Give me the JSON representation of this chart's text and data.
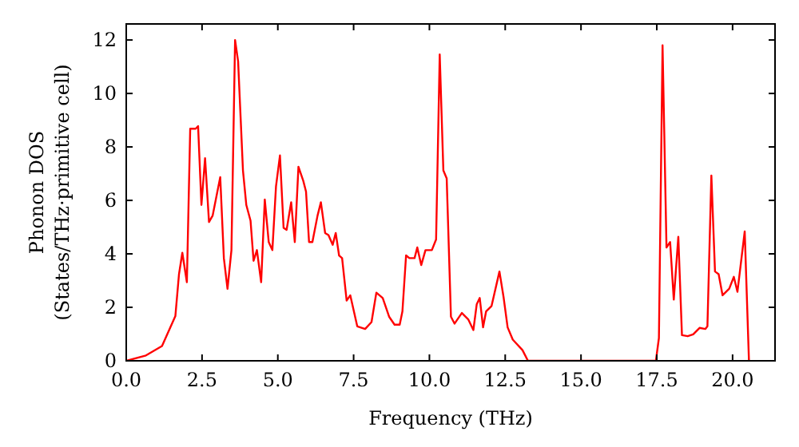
{
  "chart_data": {
    "type": "line",
    "xlabel": "Frequency (THz)",
    "ylabel": "Phonon DOS\n(States/THz·primitive cell)",
    "xlim": [
      0,
      21.4
    ],
    "ylim": [
      0,
      12.6
    ],
    "xticks": [
      {
        "value": 0,
        "label": "0.0"
      },
      {
        "value": 2.5,
        "label": "2.5"
      },
      {
        "value": 5,
        "label": "5.0"
      },
      {
        "value": 7.5,
        "label": "7.5"
      },
      {
        "value": 10,
        "label": "10.0"
      },
      {
        "value": 12.5,
        "label": "12.5"
      },
      {
        "value": 15,
        "label": "15.0"
      },
      {
        "value": 17.5,
        "label": "17.5"
      },
      {
        "value": 20,
        "label": "20.0"
      }
    ],
    "yticks": [
      0,
      2,
      4,
      6,
      8,
      10,
      12
    ],
    "grid": false,
    "marker": "none",
    "line_style": "solid",
    "series": [
      {
        "color": "#ff0000",
        "x": [
          0,
          0.65,
          1.18,
          1.62,
          1.74,
          1.85,
          2.0,
          2.11,
          2.29,
          2.37,
          2.48,
          2.6,
          2.73,
          2.85,
          3.1,
          3.22,
          3.34,
          3.47,
          3.59,
          3.69,
          3.85,
          3.96,
          4.1,
          4.2,
          4.31,
          4.45,
          4.57,
          4.7,
          4.82,
          4.94,
          5.07,
          5.19,
          5.29,
          5.44,
          5.56,
          5.68,
          5.84,
          5.93,
          6.03,
          6.14,
          6.31,
          6.42,
          6.56,
          6.67,
          6.81,
          6.91,
          7.02,
          7.12,
          7.27,
          7.39,
          7.62,
          7.88,
          8.09,
          8.25,
          8.46,
          8.67,
          8.85,
          9.02,
          9.11,
          9.23,
          9.34,
          9.51,
          9.6,
          9.73,
          9.87,
          10.08,
          10.22,
          10.34,
          10.46,
          10.57,
          10.71,
          10.83,
          11.07,
          11.28,
          11.45,
          11.56,
          11.66,
          11.77,
          11.87,
          12.05,
          12.31,
          12.45,
          12.58,
          12.75,
          13.07,
          13.25,
          17.47,
          17.57,
          17.69,
          17.82,
          17.94,
          18.06,
          18.21,
          18.33,
          18.52,
          18.7,
          18.91,
          19.1,
          19.17,
          19.3,
          19.42,
          19.54,
          19.67,
          19.89,
          20.04,
          20.16,
          20.4,
          20.54
        ],
        "values": [
          0,
          0.2,
          0.55,
          1.67,
          3.24,
          4.04,
          2.94,
          8.68,
          8.68,
          8.78,
          5.83,
          7.58,
          5.19,
          5.43,
          6.87,
          3.84,
          2.69,
          4.14,
          12.0,
          11.2,
          7.12,
          5.83,
          5.24,
          3.74,
          4.14,
          2.94,
          6.03,
          4.44,
          4.14,
          6.53,
          7.68,
          4.97,
          4.9,
          5.93,
          4.44,
          7.26,
          6.73,
          6.33,
          4.44,
          4.44,
          5.43,
          5.93,
          4.78,
          4.7,
          4.34,
          4.78,
          3.94,
          3.84,
          2.25,
          2.45,
          1.29,
          1.19,
          1.45,
          2.55,
          2.35,
          1.65,
          1.35,
          1.35,
          1.85,
          3.94,
          3.84,
          3.84,
          4.24,
          3.58,
          4.14,
          4.14,
          4.54,
          11.46,
          7.12,
          6.82,
          1.65,
          1.39,
          1.79,
          1.55,
          1.15,
          2.11,
          2.35,
          1.25,
          1.85,
          2.05,
          3.34,
          2.35,
          1.25,
          0.79,
          0.4,
          0,
          0,
          0.85,
          11.8,
          4.24,
          4.44,
          2.29,
          4.64,
          0.96,
          0.92,
          0.99,
          1.23,
          1.19,
          1.29,
          6.93,
          3.34,
          3.24,
          2.45,
          2.7,
          3.14,
          2.58,
          4.84,
          0
        ]
      }
    ]
  }
}
